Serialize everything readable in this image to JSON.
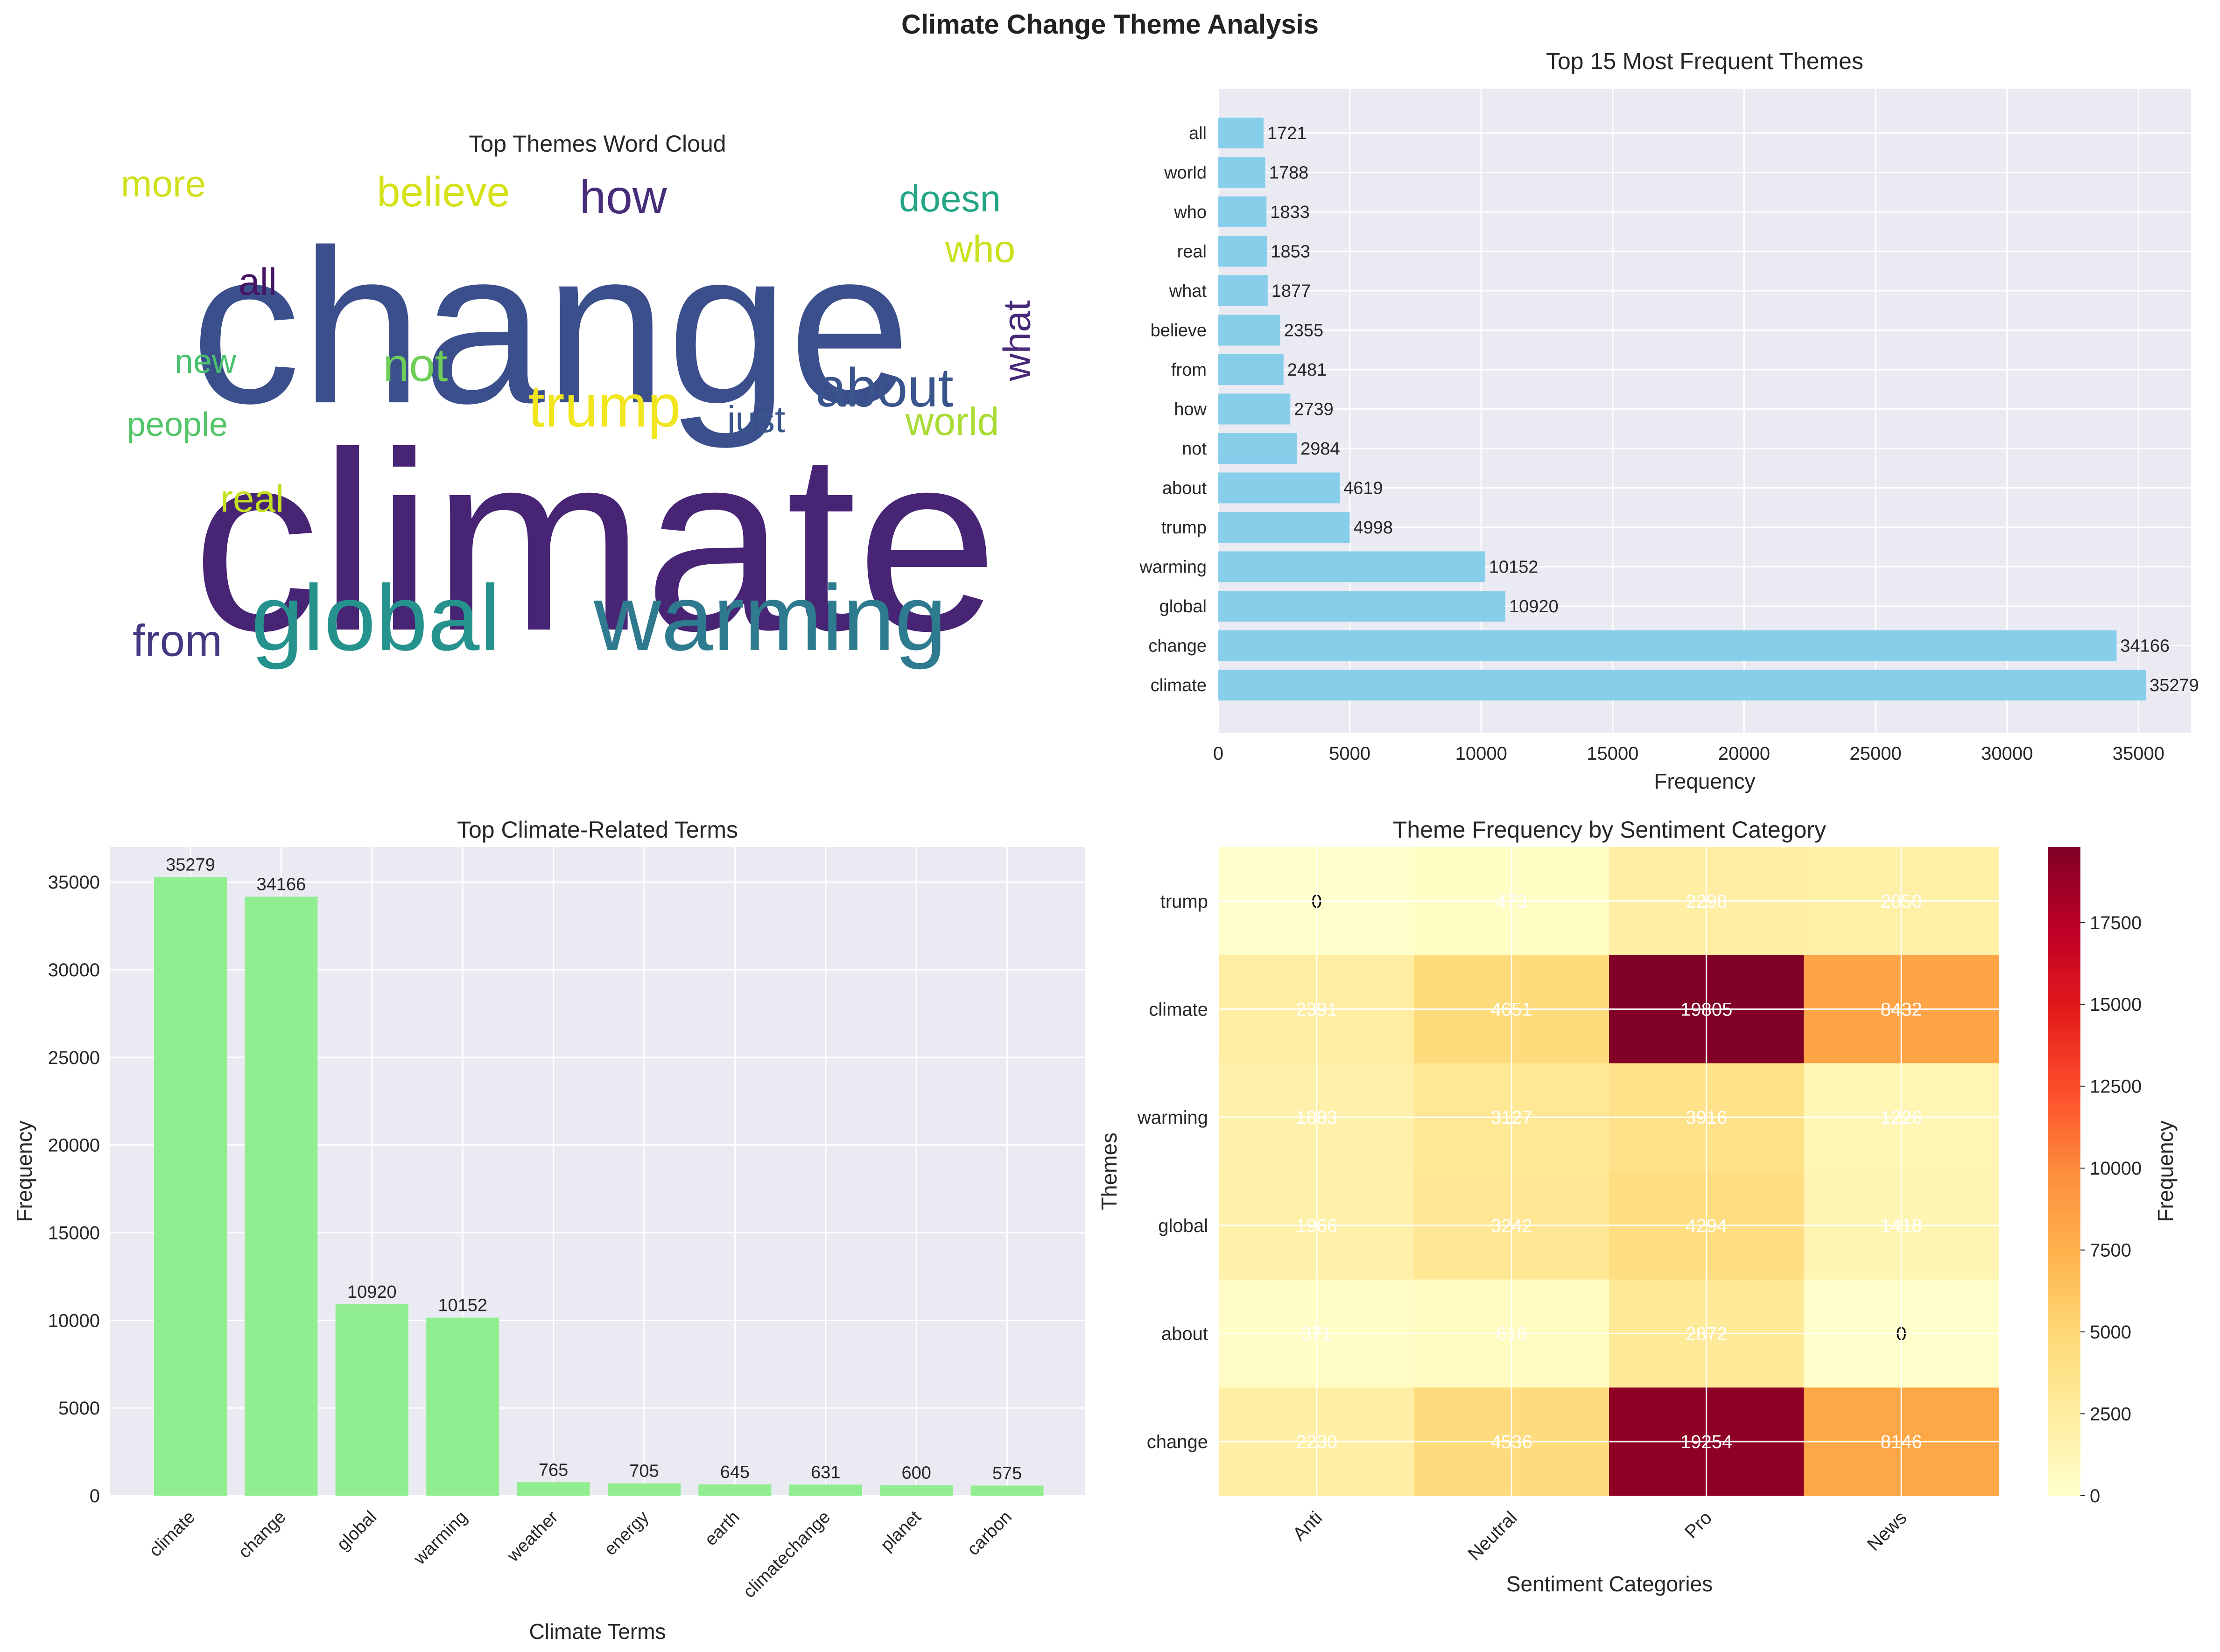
{
  "figure": {
    "suptitle": "Climate Change Theme Analysis"
  },
  "chart_data": [
    {
      "type": "wordcloud",
      "title": "Top Themes Word Cloud",
      "words": [
        {
          "text": "change",
          "color": "#3b4f8c"
        },
        {
          "text": "climate",
          "color": "#482475"
        },
        {
          "text": "global",
          "color": "#26928d"
        },
        {
          "text": "warming",
          "color": "#2e7a8e"
        },
        {
          "text": "trump",
          "color": "#f1e51d"
        },
        {
          "text": "about",
          "color": "#3a548c"
        },
        {
          "text": "how",
          "color": "#472c7a"
        },
        {
          "text": "believe",
          "color": "#d5e21a"
        },
        {
          "text": "doesn",
          "color": "#25a584"
        },
        {
          "text": "more",
          "color": "#d0e11c"
        },
        {
          "text": "who",
          "color": "#cae11f"
        },
        {
          "text": "all",
          "color": "#471365"
        },
        {
          "text": "new",
          "color": "#4ac16d"
        },
        {
          "text": "not",
          "color": "#6ece58"
        },
        {
          "text": "what",
          "color": "#482878"
        },
        {
          "text": "people",
          "color": "#54c568"
        },
        {
          "text": "just",
          "color": "#39568c"
        },
        {
          "text": "world",
          "color": "#a8db34"
        },
        {
          "text": "real",
          "color": "#c5e021"
        },
        {
          "text": "from",
          "color": "#453781"
        }
      ]
    },
    {
      "type": "bar",
      "orientation": "horizontal",
      "title": "Top 15 Most Frequent Themes",
      "xlabel": "Frequency",
      "ylabel": "",
      "xlim": [
        0,
        37000
      ],
      "xticks": [
        0,
        5000,
        10000,
        15000,
        20000,
        25000,
        30000,
        35000
      ],
      "color": "#87ceeb",
      "grid": true,
      "categories": [
        "climate",
        "change",
        "global",
        "warming",
        "trump",
        "about",
        "not",
        "how",
        "from",
        "believe",
        "what",
        "real",
        "who",
        "world",
        "all"
      ],
      "values": [
        35279,
        34166,
        10920,
        10152,
        4998,
        4619,
        2984,
        2739,
        2481,
        2355,
        1877,
        1853,
        1833,
        1788,
        1721
      ]
    },
    {
      "type": "bar",
      "title": "Top Climate-Related Terms",
      "xlabel": "Climate Terms",
      "ylabel": "Frequency",
      "ylim": [
        0,
        37000
      ],
      "yticks": [
        0,
        5000,
        10000,
        15000,
        20000,
        25000,
        30000,
        35000
      ],
      "color": "#90ee90",
      "grid": true,
      "categories": [
        "climate",
        "change",
        "global",
        "warming",
        "weather",
        "energy",
        "earth",
        "climatechange",
        "planet",
        "carbon"
      ],
      "values": [
        35279,
        34166,
        10920,
        10152,
        765,
        705,
        645,
        631,
        600,
        575
      ]
    },
    {
      "type": "heatmap",
      "title": "Theme Frequency by Sentiment Category",
      "xlabel": "Sentiment Categories",
      "ylabel": "Themes",
      "colorbar_label": "Frequency",
      "colorbar_ticks": [
        0,
        2500,
        5000,
        7500,
        10000,
        12500,
        15000,
        17500
      ],
      "vmin": 0,
      "vmax": 19805,
      "colormap": "YlOrRd",
      "columns": [
        "Anti",
        "Neutral",
        "Pro",
        "News"
      ],
      "rows": [
        "trump",
        "climate",
        "warming",
        "global",
        "about",
        "change"
      ],
      "values": [
        [
          0,
          473,
          2298,
          2050
        ],
        [
          2391,
          4651,
          19805,
          8432
        ],
        [
          1883,
          3127,
          3916,
          1226
        ],
        [
          1966,
          3242,
          4294,
          1418
        ],
        [
          371,
          616,
          2872,
          0
        ],
        [
          2230,
          4536,
          19254,
          8146
        ]
      ]
    }
  ]
}
